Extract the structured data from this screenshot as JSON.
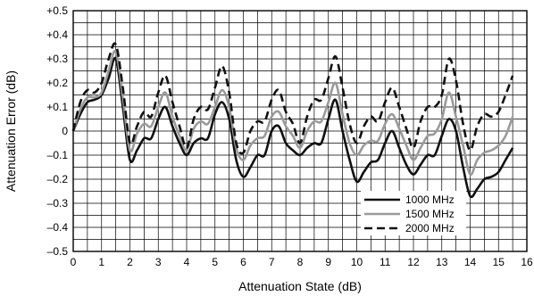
{
  "chart_data": {
    "type": "line",
    "title": "",
    "xlabel": "Attenuation State (dB)",
    "ylabel": "Attenuation Error (dB)",
    "xlim": [
      0,
      16
    ],
    "ylim": [
      -0.5,
      0.5
    ],
    "x_ticks": [
      0,
      1,
      2,
      3,
      4,
      5,
      6,
      7,
      8,
      9,
      10,
      11,
      12,
      13,
      14,
      15,
      16
    ],
    "x_tick_labels": [
      "0",
      "1",
      "2",
      "3",
      "4",
      "5",
      "6",
      "7",
      "8",
      "9",
      "10",
      "11",
      "12",
      "13",
      "14",
      "15",
      "16"
    ],
    "y_ticks": [
      0.5,
      0.4,
      0.3,
      0.2,
      0.1,
      0,
      -0.1,
      -0.2,
      -0.3,
      -0.4,
      -0.5
    ],
    "y_tick_labels": [
      "+0.5",
      "+0.4",
      "+0.3",
      "+0.2",
      "+0.1",
      "0",
      "–0.1",
      "–0.2",
      "–0.3",
      "–0.4",
      "–0.5"
    ],
    "grid": true,
    "grid_step_x": 0.5,
    "grid_step_y": 0.05,
    "legend_position": "bottom-right",
    "series": [
      {
        "name": "1000 MHz",
        "color": "#111111",
        "style": "solid",
        "x": [
          0,
          0.25,
          0.5,
          0.75,
          1,
          1.25,
          1.5,
          1.75,
          2,
          2.25,
          2.5,
          2.75,
          3,
          3.25,
          3.5,
          3.75,
          4,
          4.25,
          4.5,
          4.75,
          5,
          5.25,
          5.5,
          5.75,
          6,
          6.25,
          6.5,
          6.75,
          7,
          7.25,
          7.5,
          7.75,
          8,
          8.25,
          8.5,
          8.75,
          9,
          9.25,
          9.5,
          9.75,
          10,
          10.25,
          10.5,
          10.75,
          11,
          11.25,
          11.5,
          11.75,
          12,
          12.25,
          12.5,
          12.75,
          13,
          13.25,
          13.5,
          13.75,
          14,
          14.25,
          14.5,
          14.75,
          15,
          15.25,
          15.5
        ],
        "y": [
          0,
          0.07,
          0.12,
          0.13,
          0.15,
          0.22,
          0.3,
          0.1,
          -0.12,
          -0.08,
          -0.03,
          -0.03,
          0.05,
          0.1,
          0.02,
          -0.05,
          -0.1,
          -0.05,
          -0.03,
          -0.03,
          0.07,
          0.12,
          0.05,
          -0.12,
          -0.19,
          -0.15,
          -0.1,
          -0.1,
          0.0,
          0.02,
          -0.05,
          -0.08,
          -0.1,
          -0.07,
          -0.05,
          -0.05,
          0.05,
          0.13,
          0.0,
          -0.12,
          -0.21,
          -0.17,
          -0.13,
          -0.12,
          -0.05,
          0.0,
          -0.07,
          -0.14,
          -0.18,
          -0.14,
          -0.1,
          -0.1,
          -0.02,
          0.05,
          0.0,
          -0.15,
          -0.27,
          -0.24,
          -0.2,
          -0.19,
          -0.17,
          -0.12,
          -0.07
        ]
      },
      {
        "name": "1500 MHz",
        "color": "#9a9a9a",
        "style": "solid",
        "x": [
          0,
          0.25,
          0.5,
          0.75,
          1,
          1.25,
          1.5,
          1.75,
          2,
          2.25,
          2.5,
          2.75,
          3,
          3.25,
          3.5,
          3.75,
          4,
          4.25,
          4.5,
          4.75,
          5,
          5.25,
          5.5,
          5.75,
          6,
          6.25,
          6.5,
          6.75,
          7,
          7.25,
          7.5,
          7.75,
          8,
          8.25,
          8.5,
          8.75,
          9,
          9.25,
          9.5,
          9.75,
          10,
          10.25,
          10.5,
          10.75,
          11,
          11.25,
          11.5,
          11.75,
          12,
          12.25,
          12.5,
          12.75,
          13,
          13.25,
          13.5,
          13.75,
          14,
          14.25,
          14.5,
          14.75,
          15,
          15.25,
          15.5
        ],
        "y": [
          0,
          0.09,
          0.14,
          0.14,
          0.16,
          0.25,
          0.33,
          0.14,
          -0.08,
          -0.01,
          0.03,
          0.02,
          0.1,
          0.16,
          0.06,
          -0.02,
          -0.08,
          0.01,
          0.04,
          0.03,
          0.1,
          0.17,
          0.1,
          -0.07,
          -0.12,
          -0.06,
          -0.03,
          -0.02,
          0.06,
          0.08,
          0.02,
          -0.02,
          -0.07,
          0.0,
          0.04,
          0.04,
          0.12,
          0.2,
          0.07,
          -0.05,
          -0.1,
          -0.06,
          -0.04,
          -0.04,
          0.03,
          0.07,
          0.01,
          -0.06,
          -0.12,
          -0.07,
          -0.02,
          -0.01,
          0.05,
          0.16,
          0.06,
          -0.06,
          -0.18,
          -0.12,
          -0.09,
          -0.08,
          -0.06,
          -0.02,
          0.06
        ]
      },
      {
        "name": "2000 MHz",
        "color": "#111111",
        "style": "dashed",
        "x": [
          0,
          0.25,
          0.5,
          0.75,
          1,
          1.25,
          1.5,
          1.75,
          2,
          2.25,
          2.5,
          2.75,
          3,
          3.25,
          3.5,
          3.75,
          4,
          4.25,
          4.5,
          4.75,
          5,
          5.25,
          5.5,
          5.75,
          6,
          6.25,
          6.5,
          6.75,
          7,
          7.25,
          7.5,
          7.75,
          8,
          8.25,
          8.5,
          8.75,
          9,
          9.25,
          9.5,
          9.75,
          10,
          10.25,
          10.5,
          10.75,
          11,
          11.25,
          11.5,
          11.75,
          12,
          12.25,
          12.5,
          12.75,
          13,
          13.25,
          13.5,
          13.75,
          14,
          14.25,
          14.5,
          14.75,
          15,
          15.25,
          15.5
        ],
        "y": [
          0,
          0.12,
          0.17,
          0.16,
          0.2,
          0.3,
          0.36,
          0.18,
          -0.05,
          0.02,
          0.08,
          0.06,
          0.16,
          0.23,
          0.12,
          0.02,
          -0.07,
          0.05,
          0.1,
          0.09,
          0.18,
          0.27,
          0.16,
          -0.05,
          -0.09,
          0.0,
          0.04,
          0.04,
          0.13,
          0.17,
          0.08,
          0.03,
          -0.05,
          0.06,
          0.13,
          0.13,
          0.22,
          0.31,
          0.18,
          0.03,
          -0.05,
          0.02,
          0.06,
          0.04,
          0.12,
          0.18,
          0.1,
          0.01,
          -0.07,
          0.04,
          0.1,
          0.1,
          0.15,
          0.3,
          0.21,
          0.03,
          -0.08,
          0.02,
          0.07,
          0.06,
          0.08,
          0.15,
          0.23
        ]
      }
    ]
  }
}
